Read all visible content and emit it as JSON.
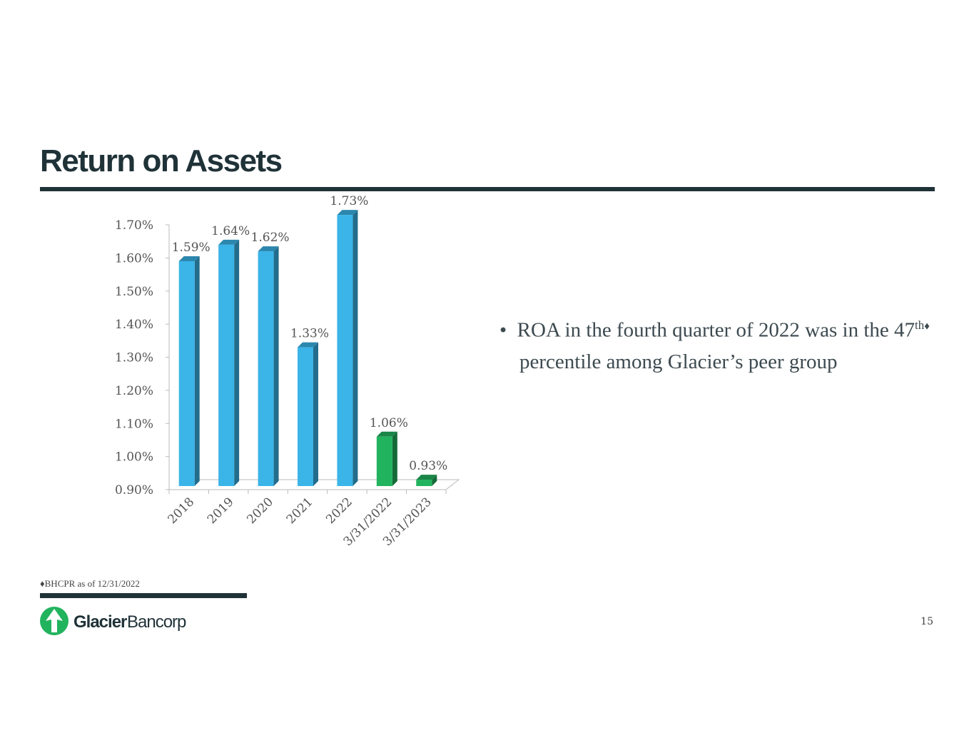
{
  "title": "Return on Assets",
  "chart_data": {
    "type": "bar3d",
    "categories": [
      "2018",
      "2019",
      "2020",
      "2021",
      "2022",
      "3/31/2022",
      "3/31/2023"
    ],
    "values": [
      1.59,
      1.64,
      1.62,
      1.33,
      1.73,
      1.06,
      0.93
    ],
    "value_labels": [
      "1.59%",
      "1.64%",
      "1.62%",
      "1.33%",
      "1.73%",
      "1.06%",
      "0.93%"
    ],
    "colors": [
      "#3bb4e8",
      "#3bb4e8",
      "#3bb4e8",
      "#3bb4e8",
      "#3bb4e8",
      "#22b35e",
      "#22b35e"
    ],
    "ylim": [
      0.9,
      1.7
    ],
    "yticks": [
      {
        "value": 0.9,
        "label": "0.90%"
      },
      {
        "value": 1.0,
        "label": "1.00%"
      },
      {
        "value": 1.1,
        "label": "1.10%"
      },
      {
        "value": 1.2,
        "label": "1.20%"
      },
      {
        "value": 1.3,
        "label": "1.30%"
      },
      {
        "value": 1.4,
        "label": "1.40%"
      },
      {
        "value": 1.5,
        "label": "1.50%"
      },
      {
        "value": 1.6,
        "label": "1.60%"
      },
      {
        "value": 1.7,
        "label": "1.70%"
      }
    ],
    "grid": false
  },
  "bullet": {
    "before": "ROA in the fourth quarter of 2022 was in the 47",
    "sup": "th",
    "mark": "♦",
    "after": " percentile among Glacier’s peer group"
  },
  "footnote": "♦BHCPR as of 12/31/2022",
  "logo": {
    "name": "Glacier",
    "suffix": "Bancorp"
  },
  "page_number": "15"
}
